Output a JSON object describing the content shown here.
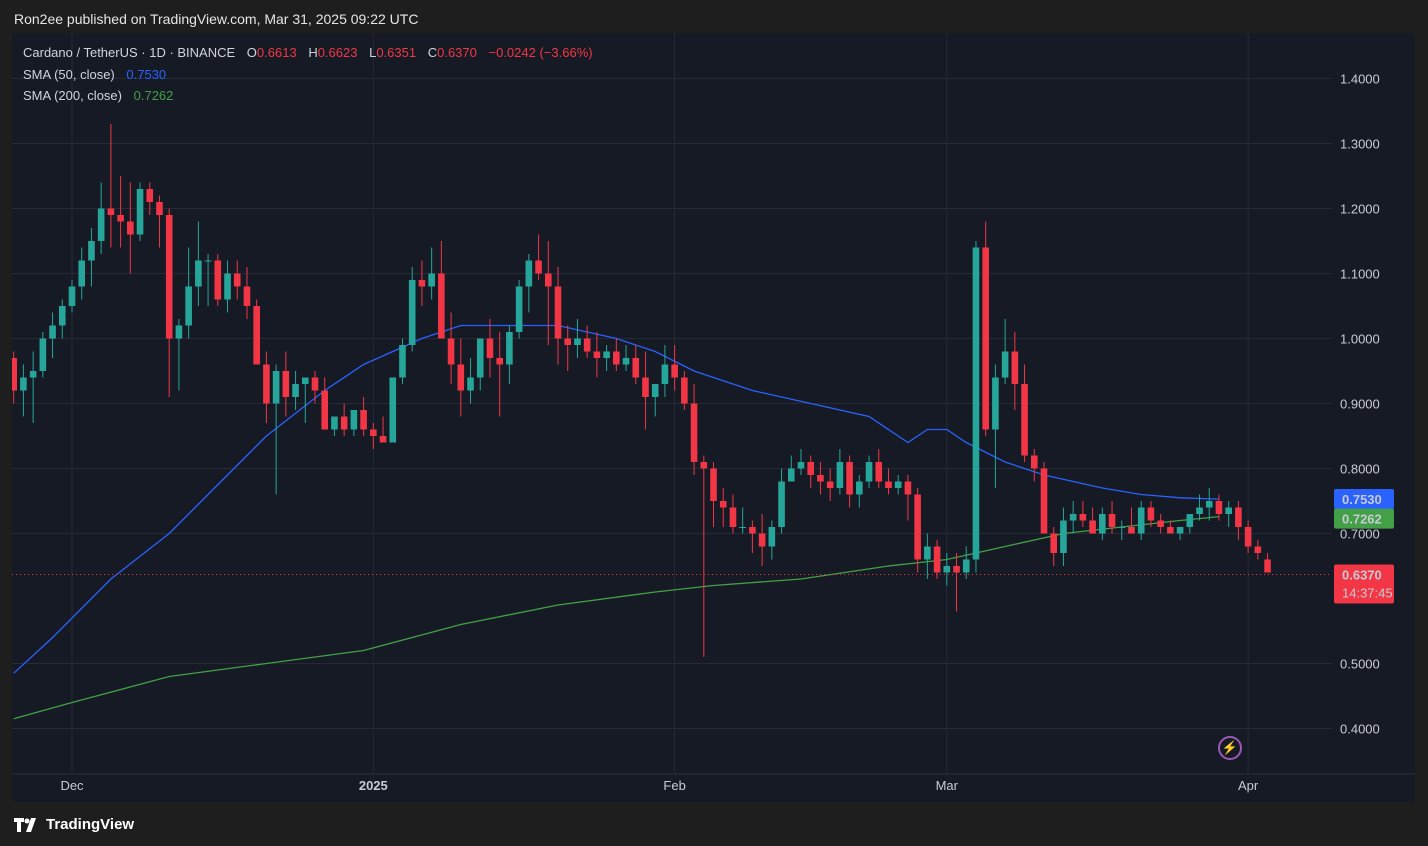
{
  "header": {
    "publisher_line": "Ron2ee published on TradingView.com, Mar 31, 2025 09:22 UTC"
  },
  "legend": {
    "symbol": "Cardano / TetherUS · 1D · BINANCE",
    "open_label": "O",
    "open": "0.6613",
    "high_label": "H",
    "high": "0.6623",
    "low_label": "L",
    "low": "0.6351",
    "close_label": "C",
    "close": "0.6370",
    "change": "−0.0242 (−3.66%)",
    "sma50_label": "SMA (50, close)",
    "sma50_value": "0.7530",
    "sma200_label": "SMA (200, close)",
    "sma200_value": "0.7262"
  },
  "colors": {
    "up": "#26a69a",
    "down": "#f23645",
    "sma50": "#2962ff",
    "sma200": "#43a047",
    "background": "#161a25",
    "grid": "#262a35"
  },
  "badges": {
    "sma50": "0.7530",
    "sma200": "0.7262",
    "price": "0.6370",
    "countdown": "14:37:45"
  },
  "footer": {
    "logo_text": "TradingView"
  },
  "icons": {
    "logo": "tradingview-logo-icon",
    "bolt": "lightning-icon"
  },
  "chart_data": {
    "type": "candlestick",
    "ylim": [
      0.33,
      1.47
    ],
    "y_ticks": [
      "1.4000",
      "1.3000",
      "1.2000",
      "1.1000",
      "1.0000",
      "0.9000",
      "0.8000",
      "0.7000",
      "0.5000",
      "0.4000"
    ],
    "x_ticks": [
      {
        "label": "Dec",
        "day": 0
      },
      {
        "label": "2025",
        "day": 31
      },
      {
        "label": "Feb",
        "day": 62
      },
      {
        "label": "Mar",
        "day": 90
      },
      {
        "label": "Apr",
        "day": 121
      }
    ],
    "start_day": -6,
    "candles": [
      [
        0.97,
        0.98,
        0.9,
        0.92
      ],
      [
        0.92,
        0.96,
        0.88,
        0.94
      ],
      [
        0.94,
        0.98,
        0.87,
        0.95
      ],
      [
        0.95,
        1.01,
        0.94,
        1.0
      ],
      [
        1.0,
        1.04,
        0.97,
        1.02
      ],
      [
        1.02,
        1.06,
        1.0,
        1.05
      ],
      [
        1.05,
        1.09,
        1.04,
        1.08
      ],
      [
        1.08,
        1.14,
        1.06,
        1.12
      ],
      [
        1.12,
        1.17,
        1.08,
        1.15
      ],
      [
        1.15,
        1.24,
        1.13,
        1.2
      ],
      [
        1.2,
        1.33,
        1.14,
        1.19
      ],
      [
        1.19,
        1.25,
        1.14,
        1.18
      ],
      [
        1.18,
        1.24,
        1.1,
        1.16
      ],
      [
        1.16,
        1.24,
        1.15,
        1.23
      ],
      [
        1.23,
        1.24,
        1.19,
        1.21
      ],
      [
        1.21,
        1.22,
        1.14,
        1.19
      ],
      [
        1.19,
        1.2,
        0.91,
        1.0
      ],
      [
        1.0,
        1.03,
        0.92,
        1.02
      ],
      [
        1.02,
        1.14,
        1.0,
        1.08
      ],
      [
        1.08,
        1.18,
        1.05,
        1.12
      ],
      [
        1.12,
        1.13,
        1.05,
        1.12
      ],
      [
        1.12,
        1.13,
        1.05,
        1.06
      ],
      [
        1.06,
        1.12,
        1.04,
        1.1
      ],
      [
        1.1,
        1.12,
        1.06,
        1.08
      ],
      [
        1.08,
        1.11,
        1.03,
        1.05
      ],
      [
        1.05,
        1.06,
        0.96,
        0.96
      ],
      [
        0.96,
        0.98,
        0.87,
        0.9
      ],
      [
        0.9,
        0.96,
        0.76,
        0.95
      ],
      [
        0.95,
        0.98,
        0.88,
        0.91
      ],
      [
        0.91,
        0.95,
        0.89,
        0.93
      ],
      [
        0.93,
        0.94,
        0.87,
        0.94
      ],
      [
        0.94,
        0.95,
        0.9,
        0.92
      ],
      [
        0.92,
        0.94,
        0.86,
        0.86
      ],
      [
        0.86,
        0.88,
        0.85,
        0.88
      ],
      [
        0.88,
        0.9,
        0.85,
        0.86
      ],
      [
        0.86,
        0.88,
        0.85,
        0.89
      ],
      [
        0.89,
        0.91,
        0.85,
        0.86
      ],
      [
        0.86,
        0.87,
        0.83,
        0.85
      ],
      [
        0.85,
        0.88,
        0.84,
        0.84
      ],
      [
        0.84,
        0.93,
        0.84,
        0.94
      ],
      [
        0.94,
        1.0,
        0.93,
        0.99
      ],
      [
        0.99,
        1.11,
        0.98,
        1.09
      ],
      [
        1.09,
        1.12,
        1.05,
        1.08
      ],
      [
        1.08,
        1.14,
        1.06,
        1.1
      ],
      [
        1.1,
        1.15,
        1.0,
        1.0
      ],
      [
        1.0,
        1.04,
        0.93,
        0.96
      ],
      [
        0.96,
        1.0,
        0.88,
        0.92
      ],
      [
        0.92,
        0.97,
        0.9,
        0.94
      ],
      [
        0.94,
        1.0,
        0.92,
        1.0
      ],
      [
        1.0,
        1.03,
        0.94,
        0.97
      ],
      [
        0.97,
        1.01,
        0.88,
        0.96
      ],
      [
        0.96,
        1.02,
        0.93,
        1.01
      ],
      [
        1.01,
        1.09,
        1.0,
        1.08
      ],
      [
        1.08,
        1.13,
        1.04,
        1.12
      ],
      [
        1.12,
        1.16,
        1.09,
        1.1
      ],
      [
        1.1,
        1.15,
        0.99,
        1.08
      ],
      [
        1.08,
        1.11,
        0.96,
        1.0
      ],
      [
        1.0,
        1.02,
        0.95,
        0.99
      ],
      [
        0.99,
        1.03,
        0.97,
        1.0
      ],
      [
        1.0,
        1.02,
        0.97,
        0.98
      ],
      [
        0.98,
        1.01,
        0.94,
        0.97
      ],
      [
        0.97,
        0.99,
        0.95,
        0.98
      ],
      [
        0.98,
        1.0,
        0.95,
        0.96
      ],
      [
        0.96,
        0.99,
        0.95,
        0.97
      ],
      [
        0.97,
        0.99,
        0.93,
        0.94
      ],
      [
        0.94,
        0.98,
        0.86,
        0.91
      ],
      [
        0.91,
        0.93,
        0.88,
        0.93
      ],
      [
        0.93,
        0.99,
        0.91,
        0.96
      ],
      [
        0.96,
        0.99,
        0.92,
        0.94
      ],
      [
        0.94,
        0.95,
        0.89,
        0.9
      ],
      [
        0.9,
        0.93,
        0.79,
        0.81
      ],
      [
        0.81,
        0.82,
        0.51,
        0.8
      ],
      [
        0.8,
        0.81,
        0.71,
        0.75
      ],
      [
        0.75,
        0.77,
        0.71,
        0.74
      ],
      [
        0.74,
        0.76,
        0.7,
        0.71
      ],
      [
        0.71,
        0.74,
        0.7,
        0.71
      ],
      [
        0.71,
        0.72,
        0.67,
        0.7
      ],
      [
        0.7,
        0.73,
        0.65,
        0.68
      ],
      [
        0.68,
        0.72,
        0.66,
        0.71
      ],
      [
        0.71,
        0.8,
        0.7,
        0.78
      ],
      [
        0.78,
        0.82,
        0.78,
        0.8
      ],
      [
        0.8,
        0.83,
        0.79,
        0.81
      ],
      [
        0.81,
        0.82,
        0.77,
        0.79
      ],
      [
        0.79,
        0.81,
        0.76,
        0.78
      ],
      [
        0.78,
        0.8,
        0.75,
        0.77
      ],
      [
        0.77,
        0.83,
        0.76,
        0.81
      ],
      [
        0.81,
        0.82,
        0.74,
        0.76
      ],
      [
        0.76,
        0.79,
        0.74,
        0.78
      ],
      [
        0.78,
        0.82,
        0.77,
        0.81
      ],
      [
        0.81,
        0.83,
        0.77,
        0.78
      ],
      [
        0.78,
        0.8,
        0.76,
        0.77
      ],
      [
        0.77,
        0.79,
        0.76,
        0.78
      ],
      [
        0.78,
        0.79,
        0.72,
        0.76
      ],
      [
        0.76,
        0.77,
        0.64,
        0.66
      ],
      [
        0.66,
        0.7,
        0.63,
        0.68
      ],
      [
        0.68,
        0.69,
        0.63,
        0.64
      ],
      [
        0.64,
        0.67,
        0.62,
        0.65
      ],
      [
        0.65,
        0.67,
        0.58,
        0.64
      ],
      [
        0.64,
        0.68,
        0.63,
        0.66
      ],
      [
        0.66,
        1.15,
        0.64,
        1.14
      ],
      [
        1.14,
        1.18,
        0.85,
        0.86
      ],
      [
        0.86,
        0.96,
        0.77,
        0.94
      ],
      [
        0.94,
        1.03,
        0.93,
        0.98
      ],
      [
        0.98,
        1.01,
        0.89,
        0.93
      ],
      [
        0.93,
        0.96,
        0.81,
        0.82
      ],
      [
        0.82,
        0.83,
        0.78,
        0.8
      ],
      [
        0.8,
        0.81,
        0.71,
        0.7
      ],
      [
        0.7,
        0.71,
        0.65,
        0.67
      ],
      [
        0.67,
        0.74,
        0.65,
        0.72
      ],
      [
        0.72,
        0.75,
        0.7,
        0.73
      ],
      [
        0.73,
        0.75,
        0.71,
        0.72
      ],
      [
        0.72,
        0.74,
        0.7,
        0.7
      ],
      [
        0.7,
        0.74,
        0.69,
        0.73
      ],
      [
        0.73,
        0.75,
        0.7,
        0.71
      ],
      [
        0.71,
        0.72,
        0.69,
        0.71
      ],
      [
        0.71,
        0.74,
        0.7,
        0.7
      ],
      [
        0.7,
        0.75,
        0.69,
        0.74
      ],
      [
        0.74,
        0.75,
        0.71,
        0.72
      ],
      [
        0.72,
        0.73,
        0.7,
        0.71
      ],
      [
        0.71,
        0.72,
        0.7,
        0.7
      ],
      [
        0.7,
        0.71,
        0.69,
        0.71
      ],
      [
        0.71,
        0.73,
        0.7,
        0.73
      ],
      [
        0.73,
        0.76,
        0.72,
        0.74
      ],
      [
        0.74,
        0.77,
        0.72,
        0.75
      ],
      [
        0.75,
        0.76,
        0.72,
        0.73
      ],
      [
        0.73,
        0.75,
        0.71,
        0.74
      ],
      [
        0.74,
        0.75,
        0.69,
        0.71
      ],
      [
        0.71,
        0.72,
        0.67,
        0.68
      ],
      [
        0.68,
        0.69,
        0.66,
        0.67
      ],
      [
        0.66,
        0.67,
        0.64,
        0.64
      ]
    ],
    "sma50": [
      [
        -6,
        0.485
      ],
      [
        -2,
        0.54
      ],
      [
        4,
        0.63
      ],
      [
        10,
        0.7
      ],
      [
        16,
        0.79
      ],
      [
        20,
        0.85
      ],
      [
        26,
        0.92
      ],
      [
        30,
        0.96
      ],
      [
        36,
        1.0
      ],
      [
        40,
        1.02
      ],
      [
        45,
        1.02
      ],
      [
        50,
        1.02
      ],
      [
        56,
        1.0
      ],
      [
        60,
        0.98
      ],
      [
        64,
        0.95
      ],
      [
        70,
        0.92
      ],
      [
        76,
        0.9
      ],
      [
        82,
        0.88
      ],
      [
        86,
        0.84
      ],
      [
        88,
        0.86
      ],
      [
        90,
        0.86
      ],
      [
        92,
        0.84
      ],
      [
        96,
        0.81
      ],
      [
        100,
        0.79
      ],
      [
        106,
        0.77
      ],
      [
        110,
        0.76
      ],
      [
        114,
        0.755
      ],
      [
        118,
        0.753
      ]
    ],
    "sma200": [
      [
        -6,
        0.415
      ],
      [
        0,
        0.44
      ],
      [
        10,
        0.48
      ],
      [
        20,
        0.5
      ],
      [
        30,
        0.52
      ],
      [
        40,
        0.56
      ],
      [
        50,
        0.59
      ],
      [
        60,
        0.61
      ],
      [
        66,
        0.62
      ],
      [
        75,
        0.63
      ],
      [
        84,
        0.65
      ],
      [
        90,
        0.66
      ],
      [
        96,
        0.68
      ],
      [
        102,
        0.7
      ],
      [
        108,
        0.71
      ],
      [
        114,
        0.72
      ],
      [
        118,
        0.726
      ]
    ],
    "last_price": 0.637
  }
}
